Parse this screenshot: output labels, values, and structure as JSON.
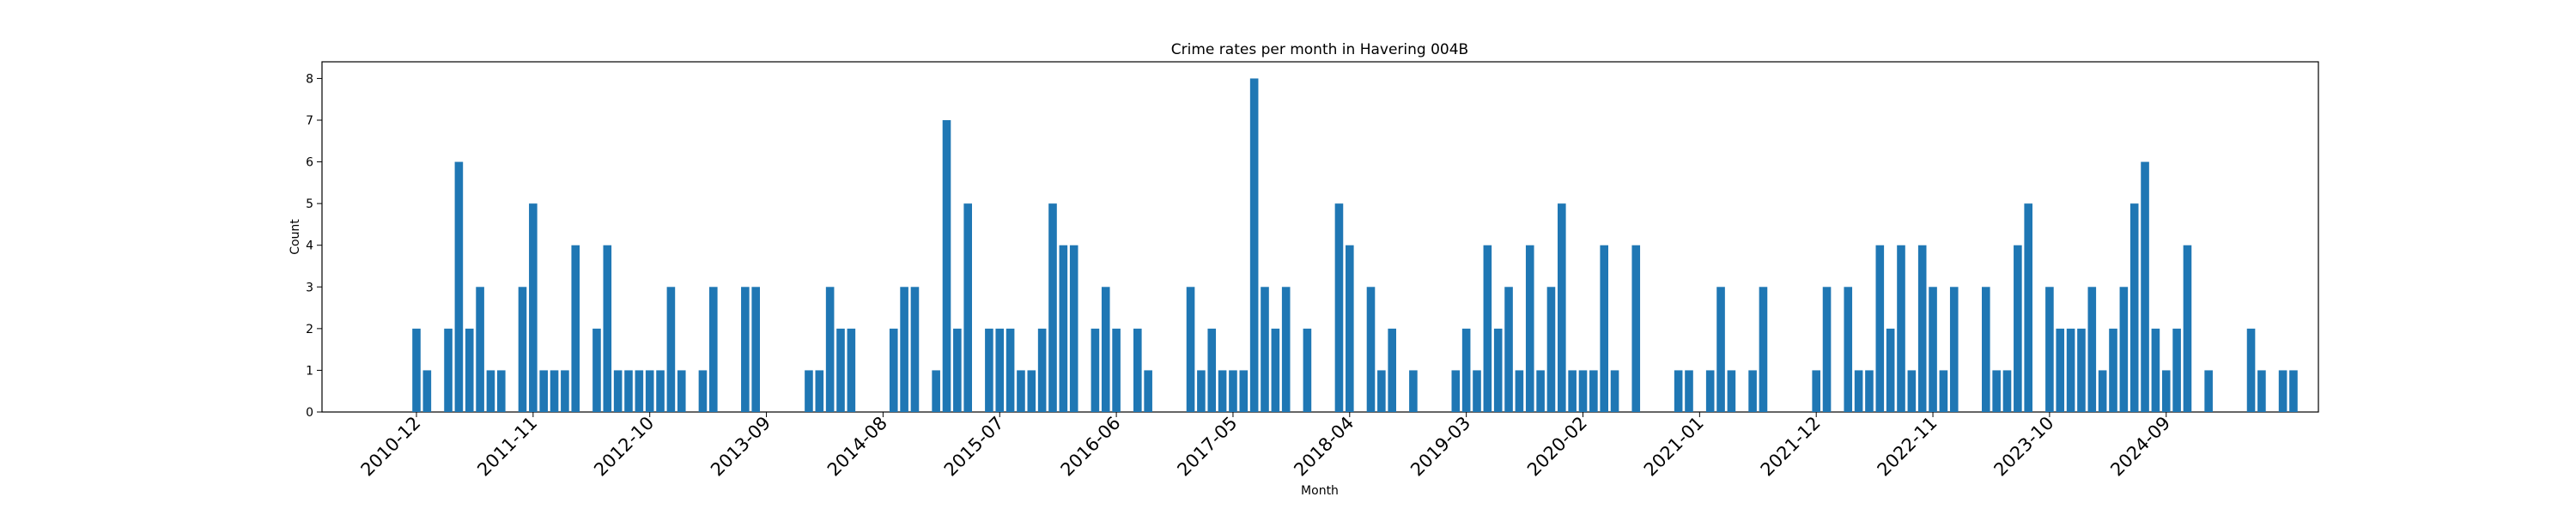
{
  "chart_data": {
    "type": "bar",
    "title": "Crime rates per month in Havering 004B",
    "xlabel": "Month",
    "ylabel": "Count",
    "ylim": [
      0,
      8.4
    ],
    "yticks": [
      0,
      1,
      2,
      3,
      4,
      5,
      6,
      7,
      8
    ],
    "xticks": [
      "2010-12",
      "2011-11",
      "2012-10",
      "2013-09",
      "2014-08",
      "2015-07",
      "2016-06",
      "2017-05",
      "2018-04",
      "2019-03",
      "2020-02",
      "2021-01",
      "2021-12",
      "2022-11",
      "2023-10",
      "2024-09"
    ],
    "start_month": "2010-12",
    "color": "#1f77b4",
    "grid": false,
    "values": [
      2,
      1,
      0,
      2,
      6,
      2,
      3,
      1,
      1,
      0,
      3,
      5,
      1,
      1,
      1,
      4,
      0,
      2,
      4,
      1,
      1,
      1,
      1,
      1,
      3,
      1,
      0,
      1,
      3,
      0,
      0,
      3,
      3,
      0,
      0,
      0,
      0,
      1,
      1,
      3,
      2,
      2,
      0,
      0,
      0,
      2,
      3,
      3,
      0,
      1,
      7,
      2,
      5,
      0,
      2,
      2,
      2,
      1,
      1,
      2,
      5,
      4,
      4,
      0,
      2,
      3,
      2,
      0,
      2,
      1,
      0,
      0,
      0,
      3,
      1,
      2,
      1,
      1,
      1,
      8,
      3,
      2,
      3,
      0,
      2,
      0,
      0,
      5,
      4,
      0,
      3,
      1,
      2,
      0,
      1,
      0,
      0,
      0,
      1,
      2,
      1,
      4,
      2,
      3,
      1,
      4,
      1,
      3,
      5,
      1,
      1,
      1,
      4,
      1,
      0,
      4,
      0,
      0,
      0,
      1,
      1,
      0,
      1,
      3,
      1,
      0,
      1,
      3,
      0,
      0,
      0,
      0,
      1,
      3,
      0,
      3,
      1,
      1,
      4,
      2,
      4,
      1,
      4,
      3,
      1,
      3,
      0,
      0,
      3,
      1,
      1,
      4,
      5,
      0,
      3,
      2,
      2,
      2,
      3,
      1,
      2,
      3,
      5,
      6,
      2,
      1,
      2,
      4,
      0,
      1,
      0,
      0,
      0,
      2,
      1,
      0,
      1,
      1
    ]
  }
}
